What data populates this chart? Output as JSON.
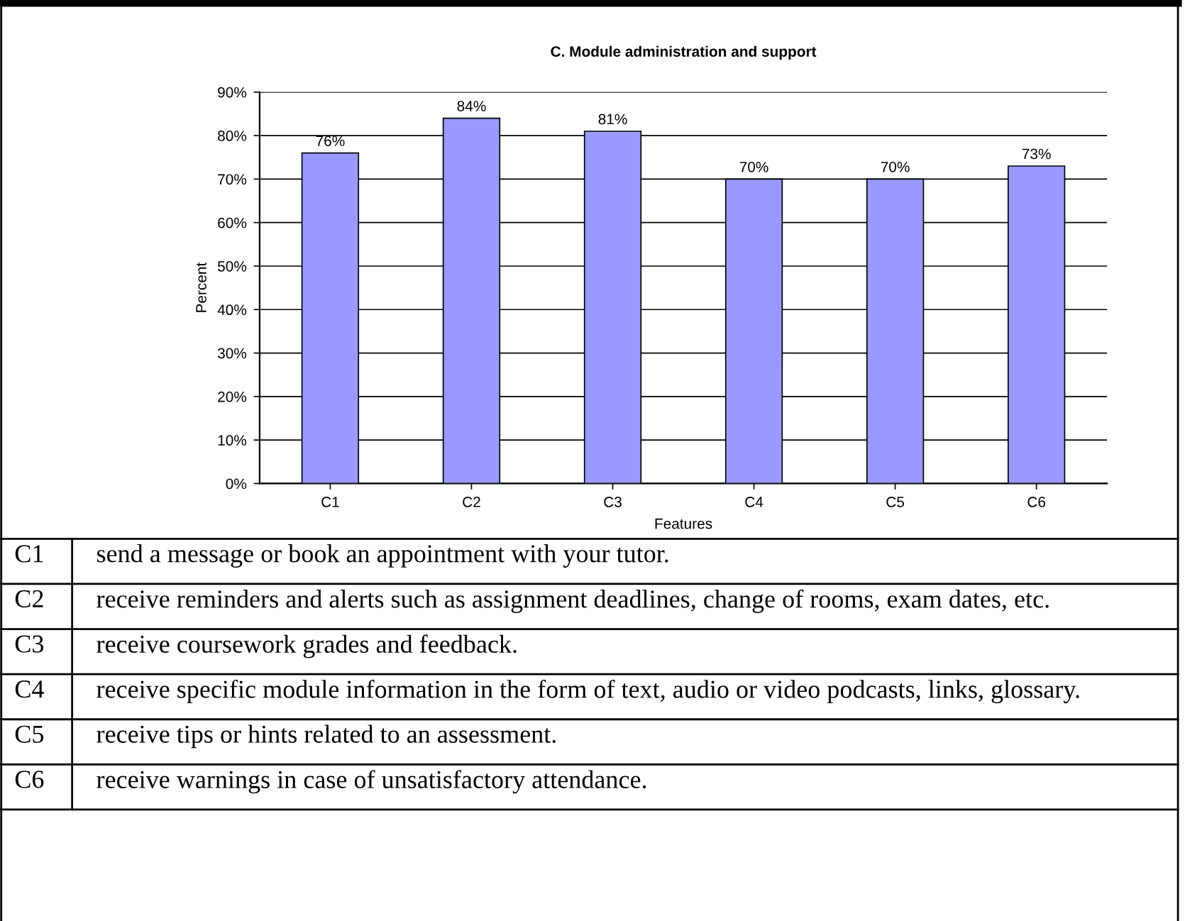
{
  "chart_data": {
    "type": "bar",
    "title": "C. Module administration and support",
    "xlabel": "Features",
    "ylabel": "Percent",
    "categories": [
      "C1",
      "C2",
      "C3",
      "C4",
      "C5",
      "C6"
    ],
    "values": [
      76,
      84,
      81,
      70,
      70,
      73
    ],
    "value_labels": [
      "76%",
      "84%",
      "81%",
      "70%",
      "70%",
      "73%"
    ],
    "color": "#9999ff",
    "ylim": [
      0,
      90
    ],
    "yticks": [
      {
        "value": 0,
        "label": "0%"
      },
      {
        "value": 10,
        "label": "10%"
      },
      {
        "value": 20,
        "label": "20%"
      },
      {
        "value": 30,
        "label": "30%"
      },
      {
        "value": 40,
        "label": "40%"
      },
      {
        "value": 50,
        "label": "50%"
      },
      {
        "value": 60,
        "label": "60%"
      },
      {
        "value": 70,
        "label": "70%"
      },
      {
        "value": 80,
        "label": "80%"
      },
      {
        "value": 90,
        "label": "90%"
      }
    ],
    "grid": "y",
    "legend": false,
    "annotations": [
      "C1",
      "send a message or book an appointment with your tutor.",
      "C2",
      "receive reminders and alerts such as assignment deadlines, change of rooms, exam dates, etc.",
      "C3",
      "receive coursework grades and feedback.",
      "C4",
      "receive specific module information in the form of text, audio or video podcasts, links, glossary.",
      "C5",
      "receive tips or hints related to an assessment.",
      "C6",
      "receive warnings in case of unsatisfactory attendance."
    ]
  }
}
